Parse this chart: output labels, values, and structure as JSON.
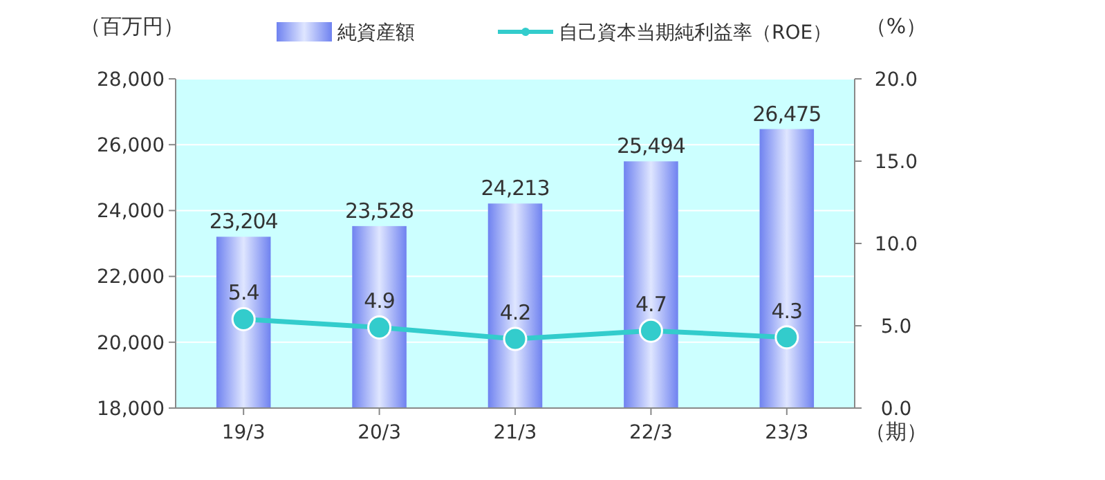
{
  "chart_data": {
    "type": "bar",
    "categories": [
      "19/3",
      "20/3",
      "21/3",
      "22/3",
      "23/3"
    ],
    "series": [
      {
        "name": "純資産額",
        "color": "#6f82f0",
        "values": [
          23204,
          23528,
          24213,
          25494,
          26475
        ]
      },
      {
        "name": "自己資本当期純利益率（ROE）",
        "type": "line",
        "axis": "y2",
        "color": "#33cccc",
        "marker": "circle",
        "values": [
          5.4,
          4.9,
          4.2,
          4.7,
          4.3
        ]
      }
    ],
    "ylabel": "（百万円）",
    "y2label": "（%）",
    "xlabel": "（期）",
    "ylim": [
      18000,
      28000
    ],
    "yticks": [
      {
        "value": 18000,
        "label": "18,000"
      },
      {
        "value": 20000,
        "label": "20,000"
      },
      {
        "value": 22000,
        "label": "22,000"
      },
      {
        "value": 24000,
        "label": "24,000"
      },
      {
        "value": 26000,
        "label": "26,000"
      },
      {
        "value": 28000,
        "label": "28,000"
      }
    ],
    "y2lim": [
      0,
      20
    ],
    "y2ticks": [
      {
        "value": 0,
        "label": "0.0"
      },
      {
        "value": 5,
        "label": "5.0"
      },
      {
        "value": 10,
        "label": "10.0"
      },
      {
        "value": 15,
        "label": "15.0"
      },
      {
        "value": 20,
        "label": "20.0"
      }
    ],
    "value_labels": [
      [
        "23,204",
        "23,528",
        "24,213",
        "25,494",
        "26,475"
      ],
      [
        "5.4",
        "4.9",
        "4.2",
        "4.7",
        "4.3"
      ]
    ],
    "grid": "y",
    "legend": "top"
  }
}
